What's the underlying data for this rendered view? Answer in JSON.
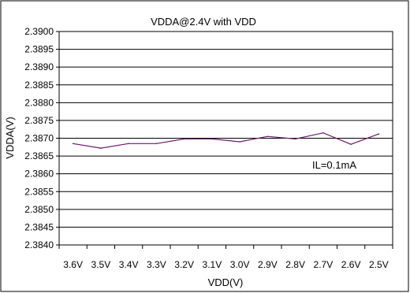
{
  "chart_data": {
    "type": "line",
    "title": "VDDA@2.4V with VDD",
    "xlabel": "VDD(V)",
    "ylabel": "VDDA(V)",
    "categories": [
      "3.6V",
      "3.5V",
      "3.4V",
      "3.3V",
      "3.2V",
      "3.1V",
      "3.0V",
      "2.9V",
      "2.8V",
      "2.7V",
      "2.6V",
      "2.5V"
    ],
    "series": [
      {
        "color": "#6b1a6b",
        "values": [
          2.38685,
          2.38672,
          2.38685,
          2.38685,
          2.38698,
          2.38698,
          2.3869,
          2.38705,
          2.38698,
          2.38715,
          2.38683,
          2.38712
        ]
      }
    ],
    "ylim": [
      2.384,
      2.39
    ],
    "yticks": [
      "2.3840",
      "2.3845",
      "2.3850",
      "2.3855",
      "2.3860",
      "2.3865",
      "2.3870",
      "2.3875",
      "2.3880",
      "2.3885",
      "2.3890",
      "2.3895",
      "2.3900"
    ],
    "grid": true,
    "annotation": "IL=0.1mA"
  }
}
